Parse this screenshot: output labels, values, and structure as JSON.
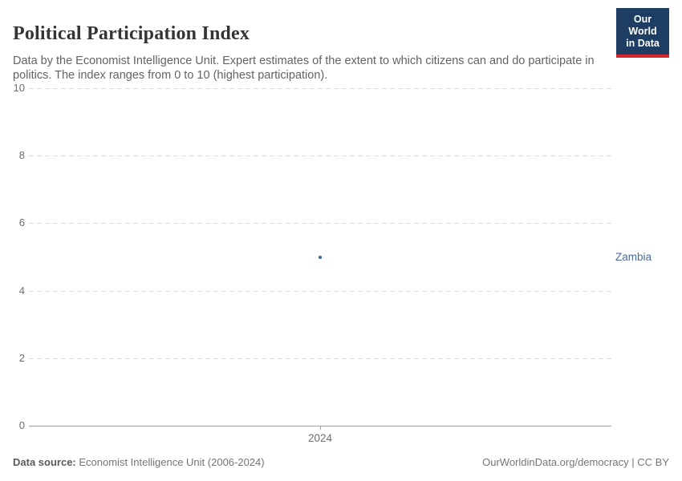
{
  "header": {
    "title": "Political Participation Index",
    "subtitle": "Data by the Economist Intelligence Unit. Expert estimates of the extent to which citizens can and do participate in politics. The index ranges from 0 to 10 (highest participation).",
    "logo": {
      "line1": "Our World",
      "line2": "in Data",
      "bg_color": "#1d3d63",
      "stripe_color": "#d5232e"
    }
  },
  "chart_data": {
    "type": "scatter",
    "title": "Political Participation Index",
    "xlabel": "",
    "ylabel": "",
    "ylim": [
      0,
      10
    ],
    "y_ticks": [
      0,
      2,
      4,
      6,
      8,
      10
    ],
    "x_ticks": [
      "2024"
    ],
    "grid": "horizontal-dashed",
    "legend_position": "right-of-point",
    "series": [
      {
        "name": "Zambia",
        "color": "#4c6a9c",
        "x": [
          2024
        ],
        "values": [
          5
        ]
      }
    ]
  },
  "footer": {
    "source_label": "Data source:",
    "source_value": " Economist Intelligence Unit (2006-2024)",
    "credit": "OurWorldinData.org/democracy | CC BY"
  }
}
